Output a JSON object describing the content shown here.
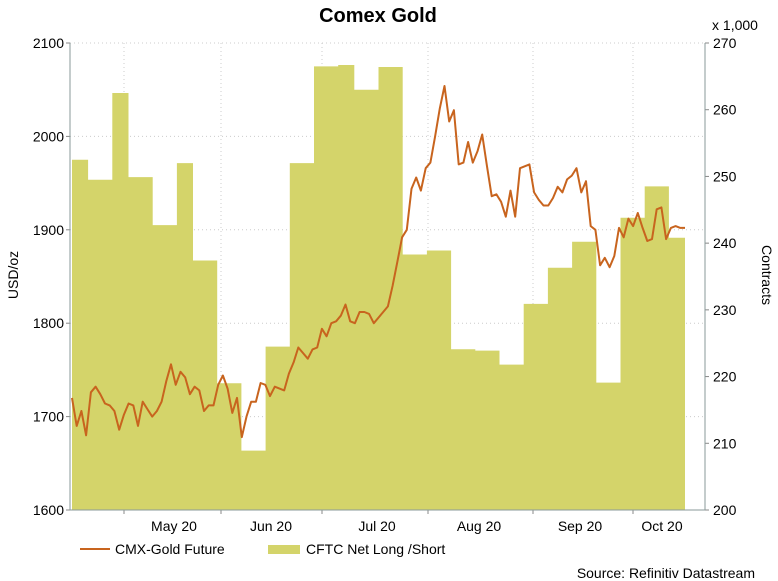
{
  "chart_data": {
    "type": "line+area",
    "title": "Comex Gold",
    "y_left": {
      "label": "USD/oz",
      "ylim": [
        1600,
        2100
      ],
      "ticks": [
        1600,
        1700,
        1800,
        1900,
        2000,
        2100
      ]
    },
    "y_right": {
      "label": "Contracts",
      "multiplier_label": "x 1,000",
      "ylim": [
        200,
        270
      ],
      "ticks": [
        200,
        210,
        220,
        230,
        240,
        250,
        260,
        270
      ]
    },
    "x_ticks": [
      "May 20",
      "Jun 20",
      "Jul 20",
      "Aug 20",
      "Sep 20",
      "Oct 20"
    ],
    "grid": true,
    "legend_position": "bottom-left",
    "series": [
      {
        "name": "CMX-Gold Future",
        "axis": "left",
        "type": "line",
        "color": "#c8641e",
        "values": [
          1720,
          1690,
          1706,
          1680,
          1726,
          1732,
          1724,
          1714,
          1712,
          1706,
          1686,
          1702,
          1714,
          1712,
          1690,
          1716,
          1708,
          1700,
          1706,
          1716,
          1738,
          1756,
          1734,
          1748,
          1742,
          1724,
          1732,
          1728,
          1706,
          1712,
          1712,
          1734,
          1744,
          1730,
          1704,
          1720,
          1678,
          1700,
          1716,
          1716,
          1736,
          1734,
          1722,
          1732,
          1730,
          1728,
          1746,
          1758,
          1774,
          1768,
          1762,
          1772,
          1774,
          1794,
          1786,
          1800,
          1802,
          1808,
          1820,
          1802,
          1800,
          1812,
          1812,
          1810,
          1800,
          1806,
          1812,
          1818,
          1840,
          1866,
          1892,
          1900,
          1944,
          1956,
          1942,
          1966,
          1972,
          2000,
          2030,
          2054,
          2016,
          2028,
          1970,
          1972,
          1994,
          1972,
          1984,
          2002,
          1968,
          1936,
          1938,
          1930,
          1914,
          1942,
          1914,
          1966,
          1968,
          1970,
          1940,
          1932,
          1926,
          1926,
          1934,
          1946,
          1940,
          1954,
          1958,
          1966,
          1940,
          1952,
          1904,
          1900,
          1862,
          1870,
          1860,
          1872,
          1902,
          1892,
          1912,
          1904,
          1918,
          1902,
          1888,
          1890,
          1922,
          1924,
          1890,
          1902,
          1904,
          1902,
          1902
        ]
      },
      {
        "name": "CFTC Net Long /Short",
        "axis": "right",
        "type": "area",
        "color": "#d4d46a",
        "steps": [
          252.5,
          252.5,
          249.5,
          249.5,
          249.5,
          262.5,
          262.5,
          249.9,
          249.9,
          249.9,
          242.7,
          242.7,
          242.7,
          252,
          252,
          237.4,
          237.4,
          237.4,
          219,
          219,
          219,
          208.9,
          208.9,
          208.9,
          224.5,
          224.5,
          224.5,
          252,
          252,
          252,
          266.5,
          266.5,
          266.5,
          266.7,
          266.7,
          263,
          263,
          263,
          266.4,
          266.4,
          266.4,
          238.3,
          238.3,
          238.3,
          238.9,
          238.9,
          238.9,
          224.1,
          224.1,
          224.1,
          223.9,
          223.9,
          223.9,
          221.8,
          221.8,
          221.8,
          230.9,
          230.9,
          230.9,
          236.3,
          236.3,
          236.3,
          240.2,
          240.2,
          240.2,
          219.1,
          219.1,
          219.1,
          243.8,
          243.8,
          243.8,
          248.5,
          248.5,
          248.5,
          240.8,
          240.8
        ]
      }
    ]
  },
  "source": "Source: Refinitiv Datastream"
}
